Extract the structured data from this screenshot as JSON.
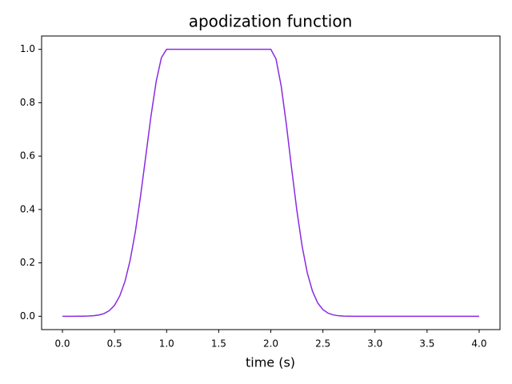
{
  "chart_data": {
    "type": "line",
    "title": "apodization function",
    "xlabel": "time (s)",
    "x": [
      0,
      0.05,
      0.1,
      0.15,
      0.2,
      0.25,
      0.3,
      0.35,
      0.4,
      0.45,
      0.5,
      0.55,
      0.6,
      0.65,
      0.7,
      0.75,
      0.8,
      0.85,
      0.9,
      0.95,
      1.0,
      1.05,
      1.1,
      1.15,
      1.2,
      1.25,
      1.3,
      1.35,
      1.4,
      1.45,
      1.5,
      1.55,
      1.6,
      1.65,
      1.7,
      1.75,
      1.8,
      1.85,
      1.9,
      1.95,
      2.0,
      2.05,
      2.1,
      2.15,
      2.2,
      2.25,
      2.3,
      2.35,
      2.4,
      2.45,
      2.5,
      2.55,
      2.6,
      2.65,
      2.7,
      2.75,
      2.8,
      2.85,
      2.9,
      2.95,
      3.0,
      3.05,
      3.1,
      3.15,
      3.2,
      3.25,
      3.3,
      3.35,
      3.4,
      3.45,
      3.5,
      3.55,
      3.6,
      3.65,
      3.7,
      3.75,
      3.8,
      3.85,
      3.9,
      3.95,
      4.0
    ],
    "series": [
      {
        "color": "#8a2be2",
        "values": [
          0,
          0,
          0,
          0.0001,
          0.0003,
          0.0008,
          0.0019,
          0.0046,
          0.0101,
          0.021,
          0.041,
          0.076,
          0.13,
          0.21,
          0.317,
          0.451,
          0.6,
          0.75,
          0.88,
          0.969,
          1,
          1,
          1,
          1,
          1,
          1,
          1,
          1,
          1,
          1,
          1,
          1,
          1,
          1,
          1,
          1,
          1,
          1,
          1,
          1,
          1,
          0.964,
          0.862,
          0.717,
          0.553,
          0.397,
          0.264,
          0.163,
          0.094,
          0.05,
          0.025,
          0.0114,
          0.0049,
          0.0019,
          0.0007,
          0.0002,
          0,
          0,
          0,
          0,
          0,
          0,
          0,
          0,
          0,
          0,
          0,
          0,
          0,
          0,
          0,
          0,
          0,
          0,
          0,
          0,
          0,
          0,
          0,
          0,
          0
        ]
      }
    ],
    "xlim": [
      -0.2,
      4.2
    ],
    "ylim": [
      -0.05,
      1.05
    ],
    "xticks": [
      {
        "value": 0,
        "label": "0.0"
      },
      0.5,
      {
        "value": 1,
        "label": "1.0"
      },
      1.5,
      {
        "value": 2,
        "label": "2.0"
      },
      2.5,
      {
        "value": 3,
        "label": "3.0"
      },
      3.5,
      {
        "value": 4,
        "label": "4.0"
      }
    ],
    "yticks": [
      {
        "value": 0,
        "label": "0.0"
      },
      0.2,
      0.4,
      0.6,
      0.8,
      {
        "value": 1,
        "label": "1.0"
      }
    ]
  }
}
